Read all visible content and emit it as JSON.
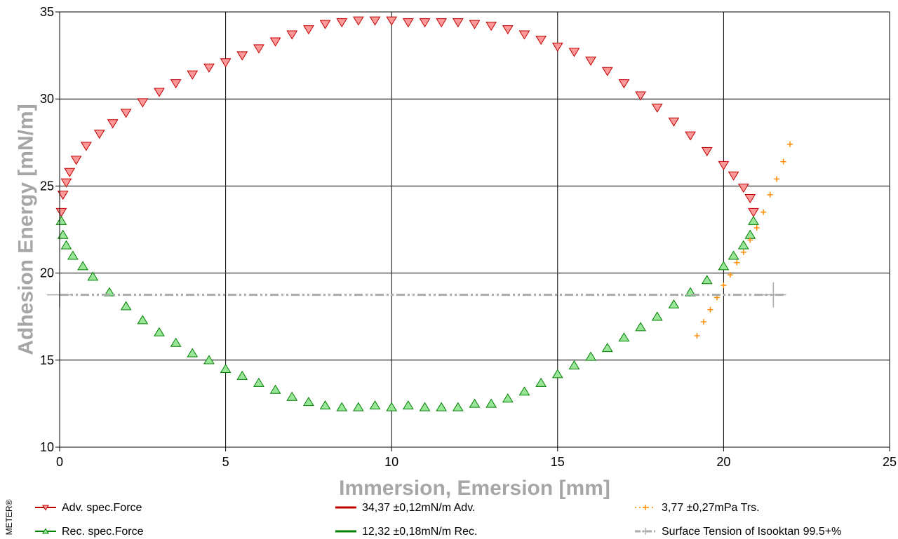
{
  "chart_data": {
    "type": "scatter",
    "title": "",
    "xlabel": "Immersion, Emersion [mm]",
    "ylabel": "Adhesion Energy [mN/m]",
    "xlim": [
      0,
      25
    ],
    "ylim": [
      10,
      35
    ],
    "xticks": [
      "0",
      "5",
      "10",
      "15",
      "20",
      "25"
    ],
    "yticks": [
      "10",
      "15",
      "20",
      "25",
      "30",
      "35"
    ],
    "grid": true,
    "legend_position": "bottom",
    "series": [
      {
        "name": "Adv. spec.Force",
        "color": "#c00000",
        "fill": "#ff9999",
        "marker": "triangle-down",
        "x": [
          0.05,
          0.1,
          0.2,
          0.3,
          0.5,
          0.8,
          1.2,
          1.6,
          2.0,
          2.5,
          3.0,
          3.5,
          4.0,
          4.5,
          5.0,
          5.5,
          6.0,
          6.5,
          7.0,
          7.5,
          8.0,
          8.5,
          9.0,
          9.5,
          10.0,
          10.5,
          11.0,
          11.5,
          12.0,
          12.5,
          13.0,
          13.5,
          14.0,
          14.5,
          15.0,
          15.5,
          16.0,
          16.5,
          17.0,
          17.5,
          18.0,
          18.5,
          19.0,
          19.5,
          20.0,
          20.3,
          20.6,
          20.8,
          20.9
        ],
        "y": [
          23.5,
          24.5,
          25.2,
          25.8,
          26.5,
          27.3,
          28.0,
          28.6,
          29.2,
          29.8,
          30.4,
          30.9,
          31.4,
          31.8,
          32.1,
          32.5,
          32.9,
          33.3,
          33.7,
          34.0,
          34.3,
          34.4,
          34.5,
          34.5,
          34.5,
          34.4,
          34.4,
          34.4,
          34.4,
          34.3,
          34.2,
          34.0,
          33.7,
          33.4,
          33.0,
          32.7,
          32.2,
          31.6,
          30.9,
          30.2,
          29.5,
          28.7,
          27.9,
          27.0,
          26.2,
          25.6,
          24.9,
          24.3,
          23.5
        ]
      },
      {
        "name": "Rec. spec.Force",
        "color": "#008000",
        "fill": "#99e699",
        "marker": "triangle-up",
        "x": [
          0.05,
          0.1,
          0.2,
          0.4,
          0.7,
          1.0,
          1.5,
          2.0,
          2.5,
          3.0,
          3.5,
          4.0,
          4.5,
          5.0,
          5.5,
          6.0,
          6.5,
          7.0,
          7.5,
          8.0,
          8.5,
          9.0,
          9.5,
          10.0,
          10.5,
          11.0,
          11.5,
          12.0,
          12.5,
          13.0,
          13.5,
          14.0,
          14.5,
          15.0,
          15.5,
          16.0,
          16.5,
          17.0,
          17.5,
          18.0,
          18.5,
          19.0,
          19.5,
          20.0,
          20.3,
          20.6,
          20.8,
          20.9
        ],
        "y": [
          23.0,
          22.2,
          21.6,
          21.0,
          20.4,
          19.8,
          18.9,
          18.1,
          17.3,
          16.6,
          16.0,
          15.4,
          15.0,
          14.5,
          14.1,
          13.7,
          13.3,
          12.9,
          12.6,
          12.4,
          12.3,
          12.3,
          12.4,
          12.3,
          12.4,
          12.3,
          12.3,
          12.3,
          12.5,
          12.5,
          12.8,
          13.2,
          13.7,
          14.2,
          14.7,
          15.2,
          15.7,
          16.3,
          16.9,
          17.5,
          18.2,
          18.9,
          19.6,
          20.4,
          21.0,
          21.6,
          22.2,
          23.0
        ]
      },
      {
        "name": "34,37 ±0,12mN/m Adv.",
        "color": "#c00000",
        "type": "line-legend-only"
      },
      {
        "name": "12,32 ±0,18mN/m Rec.",
        "color": "#008000",
        "type": "line-legend-only"
      },
      {
        "name": "3,77 ±0,27mPa Trs.",
        "color": "#ff8c00",
        "marker": "plus",
        "x": [
          19.2,
          19.4,
          19.6,
          19.8,
          20.0,
          20.2,
          20.4,
          20.6,
          20.8,
          21.0,
          21.2,
          21.4,
          21.6,
          21.8,
          22.0
        ],
        "y": [
          16.4,
          17.2,
          17.9,
          18.6,
          19.3,
          19.9,
          20.6,
          21.2,
          21.9,
          22.6,
          23.5,
          24.5,
          25.4,
          26.4,
          27.4
        ]
      },
      {
        "name": "Surface Tension of Isooktan 99.5+%",
        "color": "#aaaaaa",
        "marker": "plus",
        "type": "dash-dot-line",
        "x": [
          0.0,
          21.5
        ],
        "y": [
          18.75,
          18.75
        ]
      }
    ]
  },
  "brand_text": "METER®"
}
